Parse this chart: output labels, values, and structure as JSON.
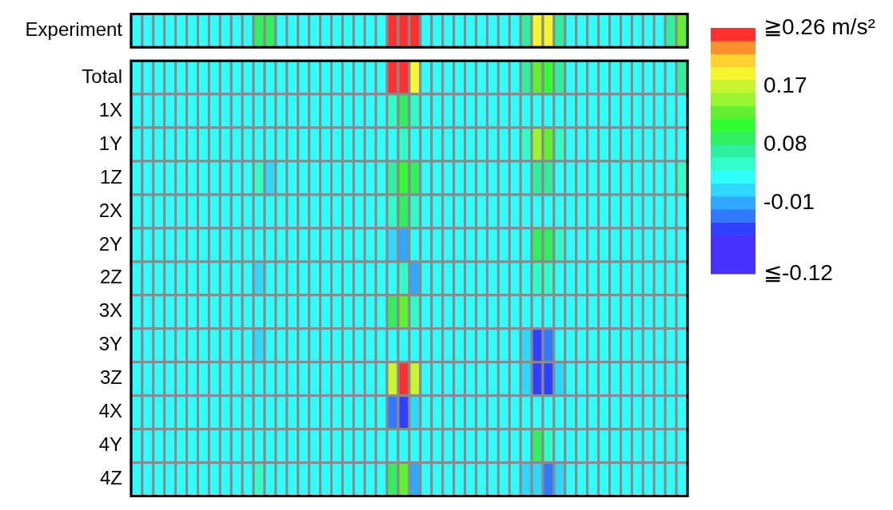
{
  "chart_data": {
    "type": "heatmap",
    "categories": [
      null,
      null,
      null,
      null,
      null,
      null,
      null,
      null,
      null,
      null,
      null,
      null,
      null,
      null,
      null,
      null,
      null,
      null,
      null,
      null,
      null,
      null,
      null,
      null,
      null,
      null,
      null,
      null,
      null,
      null,
      null,
      null,
      null,
      null,
      null,
      null,
      null,
      null,
      null,
      null,
      null,
      null,
      null,
      null,
      null,
      null,
      null,
      null,
      null,
      null
    ],
    "y_categories": [
      "Experiment",
      "Total",
      "1X",
      "1Y",
      "1Z",
      "2X",
      "2Y",
      "2Z",
      "3X",
      "3Y",
      "3Z",
      "4X",
      "4Y",
      "4Z"
    ],
    "clim": [
      -0.12,
      0.26
    ],
    "cticks": [
      {
        "value": 0.26,
        "label": "≧0.26 m/s²"
      },
      0.17,
      0.08,
      -0.01,
      {
        "value": -0.12,
        "label": "≦-0.12"
      }
    ],
    "cells": [
      [
        0.03,
        0.03,
        0.03,
        0.03,
        0.03,
        0.03,
        0.03,
        0.03,
        0.03,
        0.03,
        0.03,
        0.09,
        0.09,
        0.03,
        0.03,
        0.03,
        0.03,
        0.03,
        0.03,
        0.03,
        0.03,
        0.03,
        0.03,
        0.26,
        0.26,
        0.26,
        0.03,
        0.03,
        0.03,
        0.03,
        0.03,
        0.03,
        0.03,
        0.03,
        0.03,
        0.07,
        0.19,
        0.19,
        0.07,
        0.03,
        0.03,
        0.03,
        0.03,
        0.03,
        0.03,
        0.03,
        0.03,
        0.03,
        0.07,
        0.13
      ],
      [
        0.03,
        0.03,
        0.03,
        0.03,
        0.03,
        0.03,
        0.03,
        0.03,
        0.03,
        0.03,
        0.03,
        0.03,
        0.03,
        0.03,
        0.03,
        0.03,
        0.03,
        0.03,
        0.03,
        0.03,
        0.03,
        0.03,
        0.03,
        0.26,
        0.26,
        0.19,
        0.03,
        0.03,
        0.03,
        0.03,
        0.03,
        0.03,
        0.03,
        0.03,
        0.03,
        0.07,
        0.13,
        0.11,
        0.07,
        0.03,
        0.03,
        0.03,
        0.03,
        0.03,
        0.03,
        0.03,
        0.03,
        0.03,
        0.03,
        0.07
      ],
      [
        0.03,
        0.03,
        0.03,
        0.03,
        0.03,
        0.03,
        0.03,
        0.03,
        0.03,
        0.03,
        0.03,
        0.03,
        0.03,
        0.03,
        0.03,
        0.03,
        0.03,
        0.03,
        0.03,
        0.03,
        0.03,
        0.03,
        0.03,
        0.05,
        0.09,
        0.05,
        0.03,
        0.03,
        0.03,
        0.03,
        0.03,
        0.03,
        0.03,
        0.03,
        0.03,
        0.03,
        0.03,
        0.03,
        0.03,
        0.03,
        0.03,
        0.03,
        0.03,
        0.03,
        0.03,
        0.03,
        0.03,
        0.03,
        0.03,
        0.03
      ],
      [
        0.03,
        0.03,
        0.03,
        0.03,
        0.03,
        0.03,
        0.03,
        0.03,
        0.03,
        0.03,
        0.03,
        0.03,
        0.03,
        0.03,
        0.03,
        0.03,
        0.03,
        0.03,
        0.03,
        0.03,
        0.03,
        0.03,
        0.03,
        0.03,
        0.05,
        0.03,
        0.03,
        0.03,
        0.03,
        0.03,
        0.03,
        0.03,
        0.03,
        0.03,
        0.03,
        0.05,
        0.15,
        0.13,
        0.05,
        0.03,
        0.03,
        0.03,
        0.03,
        0.03,
        0.03,
        0.03,
        0.03,
        0.03,
        0.03,
        0.03
      ],
      [
        0.03,
        0.03,
        0.03,
        0.03,
        0.03,
        0.03,
        0.03,
        0.03,
        0.03,
        0.03,
        0.03,
        0.05,
        0.01,
        0.03,
        0.03,
        0.03,
        0.03,
        0.03,
        0.03,
        0.03,
        0.03,
        0.03,
        0.03,
        0.07,
        0.11,
        0.09,
        0.03,
        0.03,
        0.03,
        0.03,
        0.03,
        0.03,
        0.03,
        0.03,
        0.03,
        0.03,
        0.07,
        0.07,
        0.03,
        0.03,
        0.03,
        0.03,
        0.03,
        0.03,
        0.03,
        0.03,
        0.03,
        0.03,
        0.03,
        0.05
      ],
      [
        0.03,
        0.03,
        0.03,
        0.03,
        0.03,
        0.03,
        0.03,
        0.03,
        0.03,
        0.03,
        0.03,
        0.03,
        0.03,
        0.03,
        0.03,
        0.03,
        0.03,
        0.03,
        0.03,
        0.03,
        0.03,
        0.03,
        0.03,
        0.05,
        0.09,
        0.05,
        0.03,
        0.03,
        0.03,
        0.03,
        0.03,
        0.03,
        0.03,
        0.03,
        0.03,
        0.03,
        0.03,
        0.03,
        0.03,
        0.03,
        0.03,
        0.03,
        0.03,
        0.03,
        0.03,
        0.03,
        0.03,
        0.03,
        0.03,
        0.03
      ],
      [
        0.03,
        0.03,
        0.03,
        0.03,
        0.03,
        0.03,
        0.03,
        0.03,
        0.03,
        0.03,
        0.03,
        0.03,
        0.03,
        0.03,
        0.03,
        0.03,
        0.03,
        0.03,
        0.03,
        0.03,
        0.03,
        0.03,
        0.03,
        0.01,
        -0.01,
        0.03,
        0.03,
        0.03,
        0.03,
        0.03,
        0.03,
        0.03,
        0.03,
        0.03,
        0.03,
        0.03,
        0.09,
        0.09,
        0.05,
        0.03,
        0.03,
        0.03,
        0.03,
        0.03,
        0.03,
        0.03,
        0.03,
        0.03,
        0.03,
        0.03
      ],
      [
        0.03,
        0.03,
        0.03,
        0.03,
        0.03,
        0.03,
        0.03,
        0.03,
        0.03,
        0.03,
        0.03,
        0.01,
        0.03,
        0.03,
        0.03,
        0.03,
        0.03,
        0.03,
        0.03,
        0.03,
        0.03,
        0.03,
        0.03,
        0.03,
        0.05,
        -0.01,
        0.03,
        0.03,
        0.03,
        0.03,
        0.03,
        0.03,
        0.03,
        0.03,
        0.03,
        0.03,
        0.05,
        0.05,
        0.03,
        0.03,
        0.03,
        0.03,
        0.03,
        0.03,
        0.03,
        0.03,
        0.03,
        0.03,
        0.03,
        0.03
      ],
      [
        0.03,
        0.03,
        0.03,
        0.03,
        0.03,
        0.03,
        0.03,
        0.03,
        0.03,
        0.03,
        0.03,
        0.03,
        0.03,
        0.03,
        0.03,
        0.03,
        0.03,
        0.03,
        0.03,
        0.03,
        0.03,
        0.03,
        0.03,
        0.09,
        0.13,
        0.05,
        0.03,
        0.03,
        0.03,
        0.03,
        0.03,
        0.03,
        0.03,
        0.03,
        0.03,
        0.03,
        0.03,
        0.03,
        0.03,
        0.03,
        0.03,
        0.03,
        0.03,
        0.03,
        0.03,
        0.03,
        0.03,
        0.03,
        0.03,
        0.03
      ],
      [
        0.03,
        0.03,
        0.03,
        0.03,
        0.03,
        0.03,
        0.03,
        0.03,
        0.03,
        0.03,
        0.03,
        0.01,
        0.03,
        0.03,
        0.03,
        0.03,
        0.03,
        0.03,
        0.03,
        0.03,
        0.03,
        0.03,
        0.03,
        0.03,
        0.03,
        0.03,
        0.03,
        0.03,
        0.03,
        0.03,
        0.03,
        0.03,
        0.03,
        0.03,
        0.03,
        0.01,
        -0.05,
        -0.03,
        0.03,
        0.03,
        0.03,
        0.03,
        0.03,
        0.03,
        0.03,
        0.03,
        0.03,
        0.03,
        0.03,
        0.03
      ],
      [
        0.03,
        0.03,
        0.03,
        0.03,
        0.03,
        0.03,
        0.03,
        0.03,
        0.03,
        0.03,
        0.03,
        0.03,
        0.03,
        0.03,
        0.03,
        0.03,
        0.03,
        0.03,
        0.03,
        0.03,
        0.03,
        0.03,
        0.03,
        0.17,
        0.26,
        0.17,
        0.03,
        0.03,
        0.03,
        0.03,
        0.03,
        0.03,
        0.03,
        0.03,
        0.03,
        0.01,
        -0.05,
        -0.05,
        0.01,
        0.03,
        0.03,
        0.03,
        0.03,
        0.03,
        0.03,
        0.03,
        0.03,
        0.03,
        0.03,
        0.03
      ],
      [
        0.03,
        0.03,
        0.03,
        0.03,
        0.03,
        0.03,
        0.03,
        0.03,
        0.03,
        0.03,
        0.03,
        0.03,
        0.03,
        0.03,
        0.03,
        0.03,
        0.03,
        0.03,
        0.03,
        0.03,
        0.03,
        0.03,
        0.03,
        -0.03,
        -0.05,
        0.01,
        0.03,
        0.03,
        0.03,
        0.03,
        0.03,
        0.03,
        0.03,
        0.03,
        0.03,
        0.03,
        0.03,
        0.03,
        0.03,
        0.03,
        0.03,
        0.03,
        0.03,
        0.03,
        0.03,
        0.03,
        0.03,
        0.03,
        0.03,
        0.03
      ],
      [
        0.03,
        0.03,
        0.03,
        0.03,
        0.03,
        0.03,
        0.03,
        0.03,
        0.03,
        0.03,
        0.03,
        0.03,
        0.03,
        0.03,
        0.03,
        0.03,
        0.03,
        0.03,
        0.03,
        0.03,
        0.03,
        0.03,
        0.03,
        0.03,
        0.03,
        0.03,
        0.03,
        0.03,
        0.03,
        0.03,
        0.03,
        0.03,
        0.03,
        0.03,
        0.03,
        0.03,
        0.09,
        0.05,
        0.03,
        0.03,
        0.03,
        0.03,
        0.03,
        0.03,
        0.03,
        0.03,
        0.03,
        0.03,
        0.03,
        0.03
      ],
      [
        0.03,
        0.03,
        0.03,
        0.03,
        0.03,
        0.03,
        0.03,
        0.03,
        0.03,
        0.03,
        0.03,
        0.05,
        0.03,
        0.03,
        0.03,
        0.03,
        0.03,
        0.03,
        0.03,
        0.03,
        0.03,
        0.03,
        0.03,
        0.09,
        0.13,
        -0.01,
        0.03,
        0.03,
        0.03,
        0.03,
        0.03,
        0.03,
        0.03,
        0.03,
        0.03,
        0.01,
        0.01,
        -0.03,
        0.01,
        0.03,
        0.03,
        0.03,
        0.03,
        0.03,
        0.03,
        0.03,
        0.03,
        0.03,
        0.03,
        0.03
      ]
    ]
  }
}
